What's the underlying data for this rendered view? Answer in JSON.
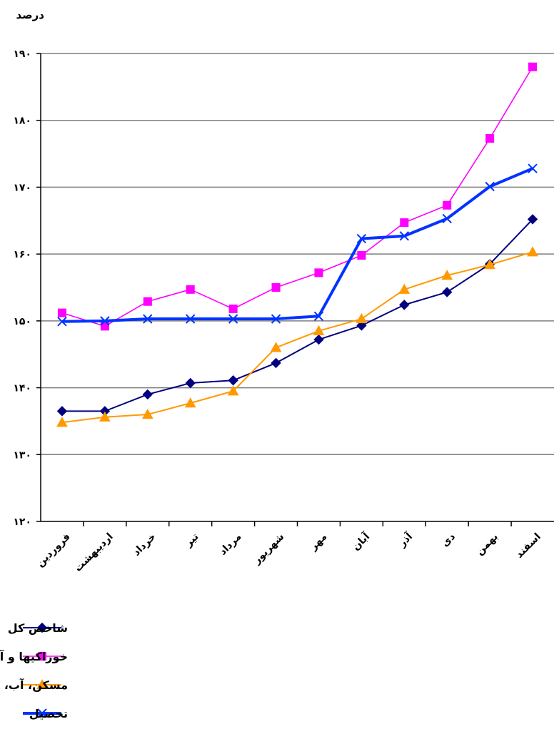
{
  "chart_data": {
    "type": "line",
    "ylabel": "درصد",
    "xlabel": "",
    "ylim": [
      120,
      190
    ],
    "y_ticks": [
      120,
      130,
      140,
      150,
      160,
      170,
      180,
      190
    ],
    "y_tick_labels": [
      "۱۲۰",
      "۱۳۰",
      "۱۴۰",
      "۱۵۰",
      "۱۶۰",
      "۱۷۰",
      "۱۸۰",
      "۱۹۰"
    ],
    "grid": true,
    "legend_position": "bottom-left",
    "categories": [
      "فروردین",
      "اردیبهشت",
      "خرداد",
      "تیر",
      "مرداد",
      "شهریور",
      "مهر",
      "آبان",
      "آذر",
      "دی",
      "بهمن",
      "اسفند"
    ],
    "series": [
      {
        "name": "شاخص کل",
        "color": "#000080",
        "marker": "diamond",
        "values": [
          136.5,
          136.5,
          139.0,
          140.7,
          141.1,
          143.7,
          147.2,
          149.3,
          152.4,
          154.3,
          158.5,
          165.2
        ]
      },
      {
        "name": "خوراکیها و آشامیدنیها",
        "color": "#FF00FF",
        "marker": "square",
        "values": [
          151.2,
          149.2,
          152.9,
          154.7,
          151.8,
          155.0,
          157.2,
          159.8,
          164.7,
          167.3,
          177.3,
          188.0
        ]
      },
      {
        "name": "مسکن، آب، برق وگاز و سایر سوختها",
        "color": "#FF9900",
        "marker": "triangle",
        "values": [
          134.8,
          135.6,
          136.0,
          137.7,
          139.5,
          146.0,
          148.5,
          150.3,
          154.7,
          156.8,
          158.4,
          160.3
        ]
      },
      {
        "name": "تحصیل",
        "color": "#0033FF",
        "marker": "x",
        "values": [
          149.9,
          150.0,
          150.3,
          150.3,
          150.3,
          150.3,
          150.7,
          162.3,
          162.7,
          165.3,
          170.1,
          172.8
        ]
      }
    ]
  }
}
